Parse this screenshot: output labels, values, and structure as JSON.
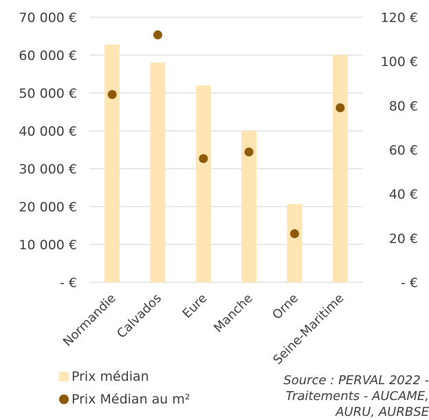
{
  "chart_data": {
    "type": "bar",
    "categories": [
      "Normandie",
      "Calvados",
      "Eure",
      "Manche",
      "Orne",
      "Seine-Maritime"
    ],
    "series": [
      {
        "name": "Prix médian",
        "kind": "bar",
        "axis": "left",
        "values": [
          62800,
          58000,
          52000,
          40000,
          20700,
          60000
        ],
        "color": "#FFE5B3"
      },
      {
        "name": "Prix Médian au m²",
        "kind": "scatter",
        "axis": "right",
        "values": [
          85,
          112,
          56,
          59,
          22,
          79
        ],
        "color": "#8F5A07"
      }
    ],
    "left_axis": {
      "ylim": [
        0,
        70000
      ],
      "tick_labels": [
        "-   €",
        "10 000 €",
        "20 000 €",
        "30 000 €",
        "40 000 €",
        "50 000 €",
        "60 000 €",
        "70 000 €"
      ]
    },
    "right_axis": {
      "ylim": [
        0,
        120
      ],
      "tick_labels": [
        "-   €",
        "20 €",
        "40 €",
        "60 €",
        "80 €",
        "100 €",
        "120 €"
      ]
    },
    "grid": true,
    "legend_placement": "bottom-left",
    "source_lines": [
      "Source : PERVAL 2022 -",
      "Traitements - AUCAME,",
      "AURU, AURBSE"
    ]
  },
  "legend": {
    "bar_label": "Prix médian",
    "dot_label": "Prix Médian au m²"
  }
}
